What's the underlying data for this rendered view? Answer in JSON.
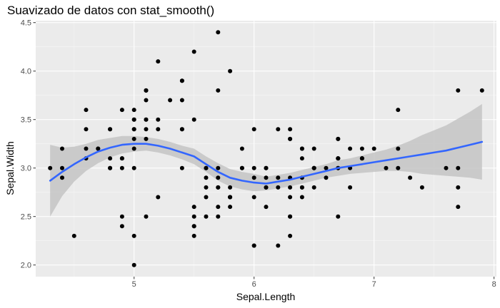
{
  "chart_data": {
    "type": "scatter",
    "title": "Suavizado de datos con stat_smooth()",
    "xlabel": "Sepal.Length",
    "ylabel": "Sepal.Width",
    "xlim": [
      4.18,
      8.02
    ],
    "ylim": [
      1.88,
      4.52
    ],
    "x_ticks": [
      5,
      6,
      7,
      8
    ],
    "y_ticks": [
      2.0,
      2.5,
      3.0,
      3.5,
      4.0,
      4.5
    ],
    "x_tick_labels": [
      "5",
      "6",
      "7",
      "8"
    ],
    "y_tick_labels": [
      "2.0",
      "2.5",
      "3.0",
      "3.5",
      "4.0",
      "4.5"
    ],
    "grid": true,
    "legend": "none",
    "colors": {
      "panel": "#ebebeb",
      "grid_major": "#ffffff",
      "point": "#000000",
      "smooth_line": "#3366ff",
      "ribbon": "#c4c4c4"
    },
    "points": [
      [
        5.1,
        3.5
      ],
      [
        4.9,
        3.0
      ],
      [
        4.7,
        3.2
      ],
      [
        4.6,
        3.1
      ],
      [
        5.0,
        3.6
      ],
      [
        5.4,
        3.9
      ],
      [
        4.6,
        3.4
      ],
      [
        5.0,
        3.4
      ],
      [
        4.4,
        2.9
      ],
      [
        4.9,
        3.1
      ],
      [
        5.4,
        3.7
      ],
      [
        4.8,
        3.4
      ],
      [
        4.8,
        3.0
      ],
      [
        4.3,
        3.0
      ],
      [
        5.8,
        4.0
      ],
      [
        5.7,
        4.4
      ],
      [
        5.4,
        3.9
      ],
      [
        5.1,
        3.5
      ],
      [
        5.7,
        3.8
      ],
      [
        5.1,
        3.8
      ],
      [
        5.4,
        3.4
      ],
      [
        5.1,
        3.7
      ],
      [
        4.6,
        3.6
      ],
      [
        5.1,
        3.3
      ],
      [
        4.8,
        3.4
      ],
      [
        5.0,
        3.0
      ],
      [
        5.0,
        3.4
      ],
      [
        5.2,
        3.5
      ],
      [
        5.2,
        3.4
      ],
      [
        4.7,
        3.2
      ],
      [
        4.8,
        3.1
      ],
      [
        5.4,
        3.4
      ],
      [
        5.2,
        4.1
      ],
      [
        5.5,
        4.2
      ],
      [
        4.9,
        3.1
      ],
      [
        5.0,
        3.2
      ],
      [
        5.5,
        3.5
      ],
      [
        4.9,
        3.6
      ],
      [
        4.4,
        3.0
      ],
      [
        5.1,
        3.4
      ],
      [
        5.0,
        3.5
      ],
      [
        4.5,
        2.3
      ],
      [
        4.4,
        3.2
      ],
      [
        5.0,
        3.5
      ],
      [
        5.1,
        3.8
      ],
      [
        4.8,
        3.0
      ],
      [
        5.1,
        3.8
      ],
      [
        4.6,
        3.2
      ],
      [
        5.3,
        3.7
      ],
      [
        5.0,
        3.3
      ],
      [
        7.0,
        3.2
      ],
      [
        6.4,
        3.2
      ],
      [
        6.9,
        3.1
      ],
      [
        5.5,
        2.3
      ],
      [
        6.5,
        2.8
      ],
      [
        5.7,
        2.8
      ],
      [
        6.3,
        3.3
      ],
      [
        4.9,
        2.4
      ],
      [
        6.6,
        2.9
      ],
      [
        5.2,
        2.7
      ],
      [
        5.0,
        2.0
      ],
      [
        5.9,
        3.0
      ],
      [
        6.0,
        2.2
      ],
      [
        6.1,
        2.9
      ],
      [
        5.6,
        2.9
      ],
      [
        6.7,
        3.1
      ],
      [
        5.6,
        3.0
      ],
      [
        5.8,
        2.7
      ],
      [
        6.2,
        2.2
      ],
      [
        5.6,
        2.5
      ],
      [
        5.9,
        3.2
      ],
      [
        6.1,
        2.8
      ],
      [
        6.3,
        2.5
      ],
      [
        6.1,
        2.8
      ],
      [
        6.4,
        2.9
      ],
      [
        6.6,
        3.0
      ],
      [
        6.8,
        2.8
      ],
      [
        6.7,
        3.0
      ],
      [
        6.0,
        2.9
      ],
      [
        5.7,
        2.6
      ],
      [
        5.5,
        2.4
      ],
      [
        5.5,
        2.4
      ],
      [
        5.8,
        2.7
      ],
      [
        6.0,
        2.7
      ],
      [
        5.4,
        3.0
      ],
      [
        6.0,
        3.4
      ],
      [
        6.7,
        3.1
      ],
      [
        6.3,
        2.3
      ],
      [
        5.6,
        3.0
      ],
      [
        5.5,
        2.5
      ],
      [
        5.5,
        2.6
      ],
      [
        6.1,
        3.0
      ],
      [
        5.8,
        2.6
      ],
      [
        5.0,
        2.3
      ],
      [
        5.6,
        2.7
      ],
      [
        5.7,
        3.0
      ],
      [
        5.7,
        2.9
      ],
      [
        6.2,
        2.9
      ],
      [
        5.1,
        2.5
      ],
      [
        5.7,
        2.8
      ],
      [
        6.3,
        3.3
      ],
      [
        5.8,
        2.7
      ],
      [
        7.1,
        3.0
      ],
      [
        6.3,
        2.9
      ],
      [
        6.5,
        3.0
      ],
      [
        7.6,
        3.0
      ],
      [
        4.9,
        2.5
      ],
      [
        7.3,
        2.9
      ],
      [
        6.7,
        2.5
      ],
      [
        7.2,
        3.6
      ],
      [
        6.5,
        3.2
      ],
      [
        6.4,
        2.7
      ],
      [
        6.8,
        3.0
      ],
      [
        5.7,
        2.5
      ],
      [
        5.8,
        2.8
      ],
      [
        6.4,
        3.2
      ],
      [
        6.5,
        3.0
      ],
      [
        7.7,
        3.8
      ],
      [
        7.7,
        2.6
      ],
      [
        6.0,
        2.2
      ],
      [
        6.9,
        3.2
      ],
      [
        5.6,
        2.8
      ],
      [
        7.7,
        2.8
      ],
      [
        6.3,
        2.7
      ],
      [
        6.7,
        3.3
      ],
      [
        7.2,
        3.2
      ],
      [
        6.2,
        2.8
      ],
      [
        6.1,
        3.0
      ],
      [
        6.4,
        2.8
      ],
      [
        7.2,
        3.0
      ],
      [
        7.4,
        2.8
      ],
      [
        7.9,
        3.8
      ],
      [
        6.4,
        2.8
      ],
      [
        6.3,
        2.8
      ],
      [
        6.1,
        2.6
      ],
      [
        7.7,
        3.0
      ],
      [
        6.3,
        3.4
      ],
      [
        6.4,
        3.1
      ],
      [
        6.0,
        3.0
      ],
      [
        6.9,
        3.1
      ],
      [
        6.7,
        3.1
      ],
      [
        6.9,
        3.1
      ],
      [
        5.8,
        2.7
      ],
      [
        6.8,
        3.2
      ],
      [
        6.7,
        3.3
      ],
      [
        6.7,
        3.0
      ],
      [
        6.3,
        2.5
      ],
      [
        6.5,
        3.0
      ],
      [
        6.2,
        3.4
      ],
      [
        5.9,
        3.0
      ]
    ],
    "smooth": {
      "method": "loess",
      "x": [
        4.3,
        4.4,
        4.5,
        4.6,
        4.7,
        4.8,
        4.9,
        5.0,
        5.1,
        5.2,
        5.3,
        5.4,
        5.5,
        5.6,
        5.7,
        5.8,
        5.9,
        6.0,
        6.1,
        6.2,
        6.3,
        6.4,
        6.5,
        6.6,
        6.7,
        6.8,
        6.9,
        7.0,
        7.1,
        7.2,
        7.3,
        7.4,
        7.5,
        7.6,
        7.7,
        7.8,
        7.9
      ],
      "y": [
        2.87,
        2.96,
        3.04,
        3.11,
        3.17,
        3.21,
        3.24,
        3.25,
        3.25,
        3.23,
        3.2,
        3.16,
        3.12,
        3.04,
        2.96,
        2.9,
        2.87,
        2.85,
        2.84,
        2.86,
        2.88,
        2.91,
        2.94,
        2.97,
        3.0,
        3.02,
        3.04,
        3.06,
        3.08,
        3.1,
        3.12,
        3.14,
        3.16,
        3.18,
        3.21,
        3.24,
        3.27
      ],
      "lower": [
        2.5,
        2.71,
        2.86,
        2.97,
        3.05,
        3.11,
        3.15,
        3.17,
        3.18,
        3.16,
        3.13,
        3.09,
        3.04,
        2.96,
        2.87,
        2.81,
        2.78,
        2.76,
        2.77,
        2.79,
        2.81,
        2.84,
        2.87,
        2.9,
        2.92,
        2.94,
        2.95,
        2.96,
        2.97,
        2.97,
        2.96,
        2.94,
        2.93,
        2.92,
        2.91,
        2.9,
        2.88
      ],
      "upper": [
        3.24,
        3.21,
        3.22,
        3.25,
        3.29,
        3.31,
        3.33,
        3.33,
        3.32,
        3.3,
        3.27,
        3.23,
        3.2,
        3.12,
        3.05,
        2.99,
        2.96,
        2.94,
        2.91,
        2.93,
        2.95,
        2.98,
        3.01,
        3.04,
        3.08,
        3.1,
        3.13,
        3.16,
        3.19,
        3.23,
        3.28,
        3.34,
        3.39,
        3.44,
        3.51,
        3.58,
        3.66
      ]
    }
  }
}
